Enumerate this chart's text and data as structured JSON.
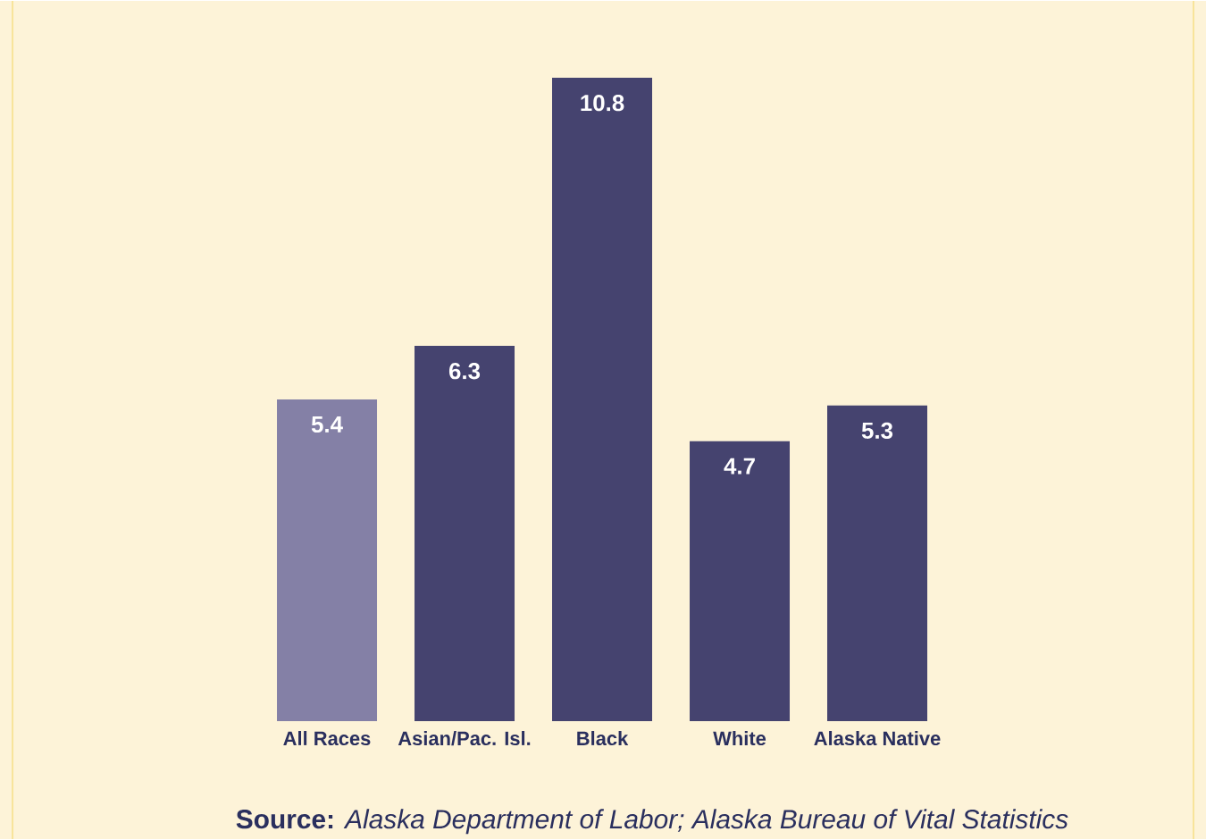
{
  "chart_data": {
    "type": "bar",
    "categories": [
      "All Races",
      "Asian/Pac. Isl.",
      "Black",
      "White",
      "Alaska Native"
    ],
    "values": [
      5.4,
      6.3,
      10.8,
      4.7,
      5.3
    ],
    "colors": [
      "#8480a6",
      "#45436f",
      "#45436f",
      "#45436f",
      "#45436f"
    ],
    "data_labels": true,
    "annotations": [
      "**Source:** *Alaska Department of Labor; Alaska Bureau of Vital Statistics*"
    ]
  }
}
